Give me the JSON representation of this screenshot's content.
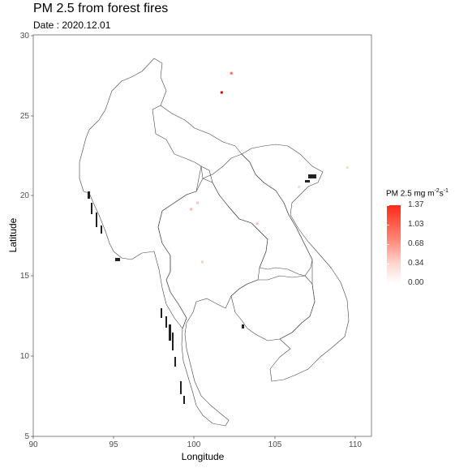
{
  "title": "PM 2.5 from forest fires",
  "subtitle": "Date : 2020.12.01",
  "xaxis": {
    "label": "Longitude",
    "ticks": [
      "90",
      "95",
      "100",
      "105",
      "110"
    ]
  },
  "yaxis": {
    "label": "Latitude",
    "ticks": [
      "5",
      "10",
      "15",
      "20",
      "25",
      "30"
    ]
  },
  "legend": {
    "title_main": "PM 2.5 mg m",
    "title_sup1": "-2",
    "title_mid": "s",
    "title_sup2": "-1",
    "labels": [
      "1.37",
      "1.03",
      "0.68",
      "0.34",
      "0.00"
    ],
    "color_high": "#ff2a1a",
    "color_low": "#ffffff"
  },
  "map_extent": {
    "lon": [
      90,
      111
    ],
    "lat": [
      5,
      30.1
    ]
  },
  "fire_points": [
    {
      "lon": 102.3,
      "lat": 27.7,
      "value": 0.9
    },
    {
      "lon": 101.7,
      "lat": 26.5,
      "value": 1.37
    },
    {
      "lon": 99.8,
      "lat": 19.2,
      "value": 0.3
    },
    {
      "lon": 100.2,
      "lat": 19.6,
      "value": 0.2
    },
    {
      "lon": 103.9,
      "lat": 18.3,
      "value": 0.25
    },
    {
      "lon": 100.5,
      "lat": 15.9,
      "value": 0.15
    },
    {
      "lon": 109.5,
      "lat": 21.8,
      "value": 0.1
    },
    {
      "lon": 106.5,
      "lat": 20.6,
      "value": 0.08
    }
  ]
}
